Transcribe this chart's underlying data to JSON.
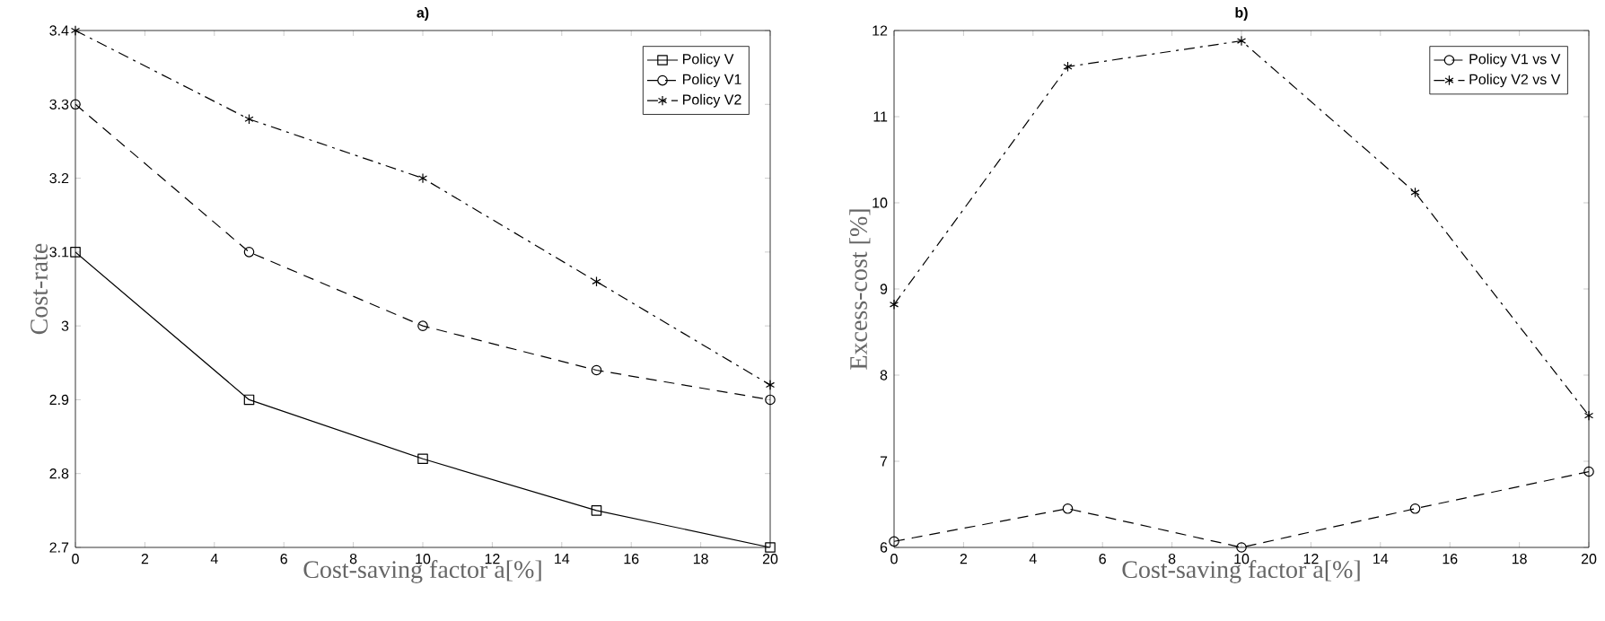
{
  "chart_data": [
    {
      "type": "line",
      "title": "a)",
      "xlabel": "Cost-saving factor a[%]",
      "ylabel": "Cost-rate",
      "x": [
        0,
        5,
        10,
        15,
        20
      ],
      "series": [
        {
          "name": "Policy V",
          "color": "#000000",
          "values": [
            3.1,
            2.9,
            2.82,
            2.75,
            2.7
          ],
          "marker": "square",
          "line_style": "solid"
        },
        {
          "name": "Policy V1",
          "color": "#000000",
          "values": [
            3.3,
            3.1,
            3.0,
            2.94,
            2.9
          ],
          "marker": "circle",
          "line_style": "dashed"
        },
        {
          "name": "Policy V2",
          "color": "#000000",
          "values": [
            3.4,
            3.28,
            3.2,
            3.06,
            2.92
          ],
          "marker": "cross",
          "line_style": "dashdot"
        }
      ],
      "xlim": [
        0,
        20
      ],
      "xticks": [
        0,
        2,
        4,
        6,
        8,
        10,
        12,
        14,
        16,
        18,
        20
      ],
      "ylim": [
        2.7,
        3.4
      ],
      "yticks": [
        2.7,
        2.8,
        2.9,
        3,
        3.1,
        3.2,
        3.3,
        3.4
      ],
      "grid": false,
      "legend": "top right"
    },
    {
      "type": "line",
      "title": "b)",
      "xlabel": "Cost-saving factor a[%]",
      "ylabel": "Excess-cost [%]",
      "x": [
        0,
        5,
        10,
        15,
        20
      ],
      "series": [
        {
          "name": "Policy V1 vs V",
          "color": "#000000",
          "values": [
            6.07,
            6.45,
            6.0,
            6.45,
            6.88
          ],
          "marker": "circle",
          "line_style": "dashed"
        },
        {
          "name": "Policy V2 vs V",
          "color": "#000000",
          "values": [
            8.82,
            11.58,
            11.88,
            10.12,
            7.53
          ],
          "marker": "cross",
          "line_style": "dashdot"
        }
      ],
      "xlim": [
        0,
        20
      ],
      "xticks": [
        0,
        2,
        4,
        6,
        8,
        10,
        12,
        14,
        16,
        18,
        20
      ],
      "ylim": [
        6,
        12
      ],
      "yticks": [
        6,
        7,
        8,
        9,
        10,
        11,
        12
      ],
      "grid": false,
      "legend": "top right"
    }
  ]
}
